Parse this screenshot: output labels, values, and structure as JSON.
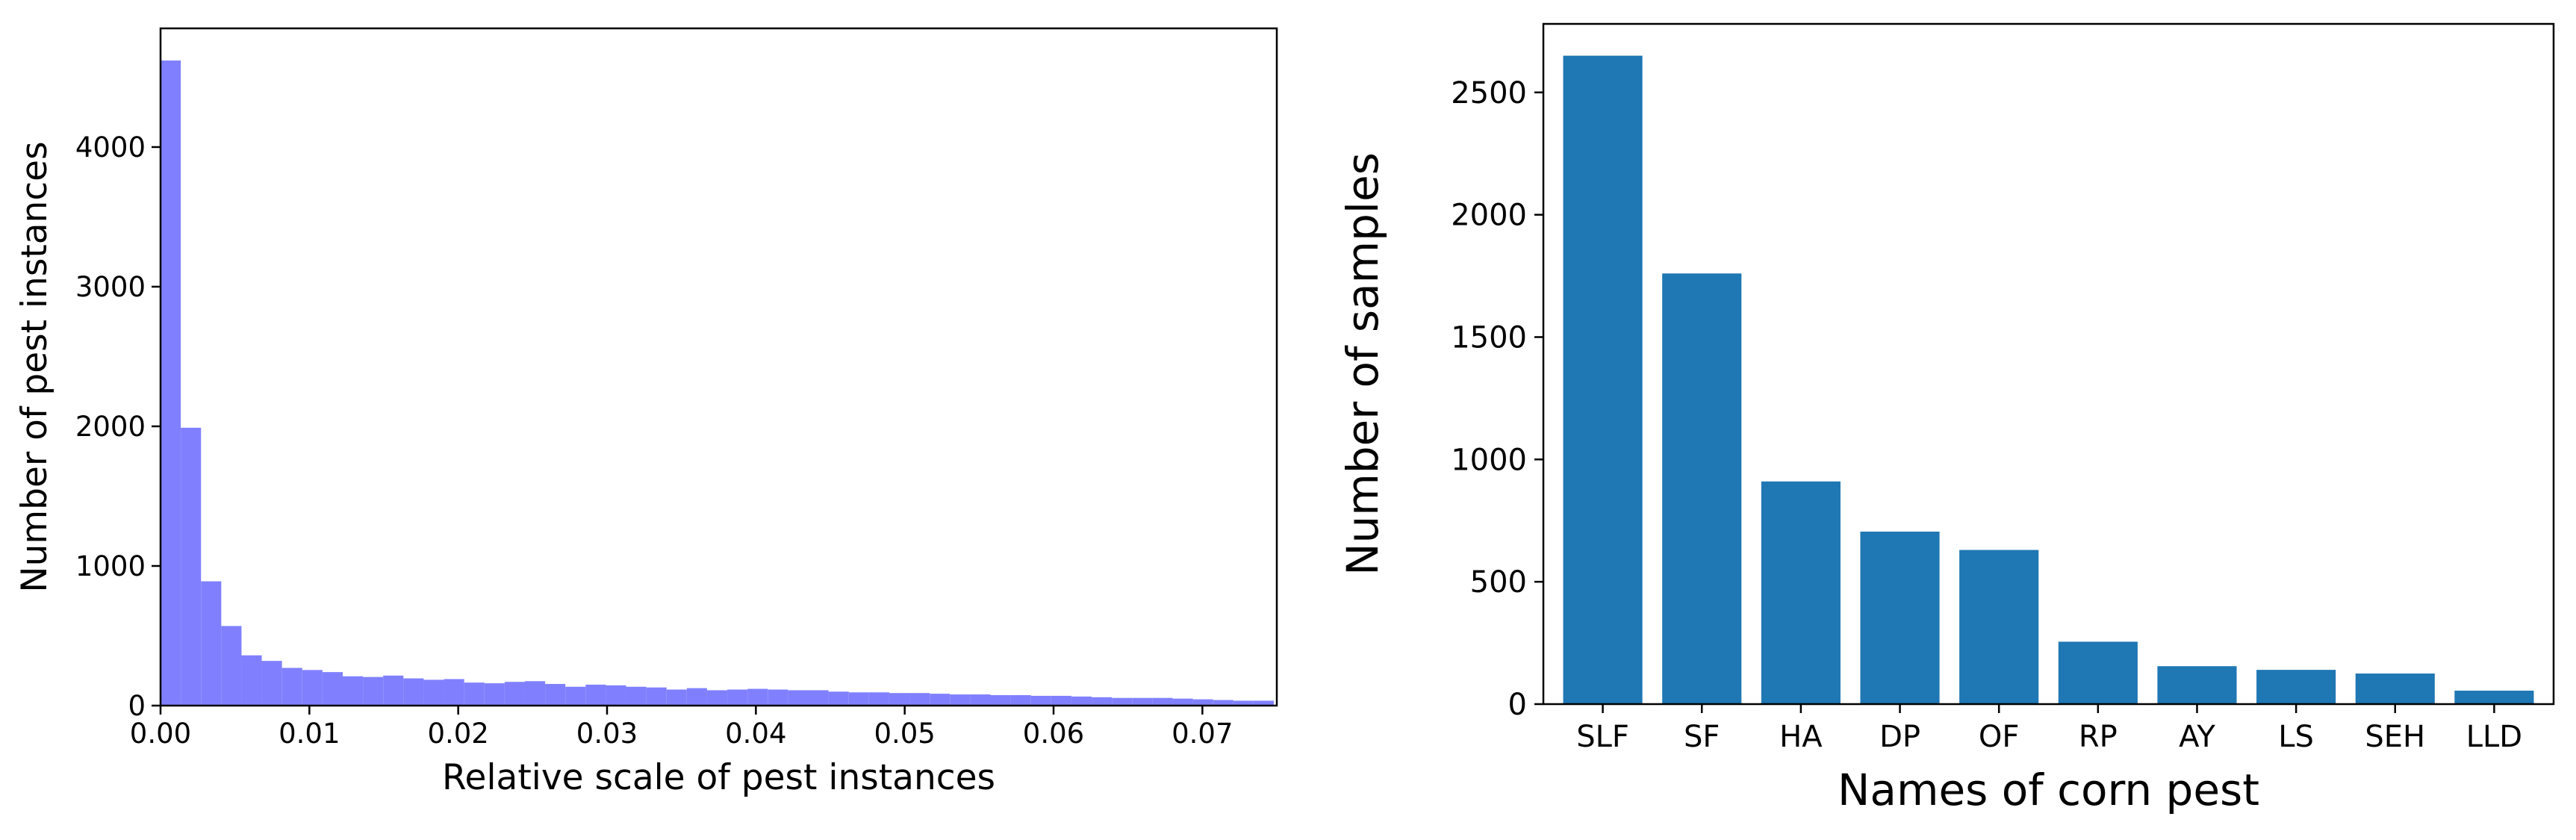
{
  "chart_data": [
    {
      "type": "bar",
      "subtype": "histogram",
      "xlabel": "Relative scale of pest instances",
      "ylabel": "Number of pest instances",
      "xlim": [
        0,
        0.075
      ],
      "ylim": [
        0,
        4850
      ],
      "xticks": [
        "0.00",
        "0.01",
        "0.02",
        "0.03",
        "0.04",
        "0.05",
        "0.06",
        "0.07"
      ],
      "yticks": [
        "0",
        "1000",
        "2000",
        "3000",
        "4000"
      ],
      "bin_width": 0.00136,
      "color": "#8080ff",
      "grid": false,
      "values": [
        4620,
        1990,
        890,
        570,
        360,
        320,
        270,
        255,
        240,
        210,
        205,
        215,
        195,
        185,
        190,
        165,
        160,
        170,
        175,
        155,
        135,
        150,
        145,
        135,
        130,
        115,
        125,
        110,
        115,
        120,
        115,
        110,
        110,
        100,
        95,
        95,
        90,
        90,
        85,
        80,
        80,
        75,
        75,
        70,
        70,
        65,
        60,
        55,
        55,
        55,
        50,
        45,
        40,
        35,
        35
      ]
    },
    {
      "type": "bar",
      "xlabel": "Names of corn pest",
      "ylabel": "Number of samples",
      "categories": [
        "SLF",
        "SF",
        "HA",
        "DP",
        "OF",
        "RP",
        "AY",
        "LS",
        "SEH",
        "LLD"
      ],
      "values": [
        2650,
        1760,
        910,
        705,
        630,
        255,
        155,
        140,
        125,
        55
      ],
      "ylim": [
        0,
        2780
      ],
      "yticks": [
        "0",
        "500",
        "1000",
        "1500",
        "2000",
        "2500"
      ],
      "color": "#1f77b4",
      "grid": false
    }
  ]
}
